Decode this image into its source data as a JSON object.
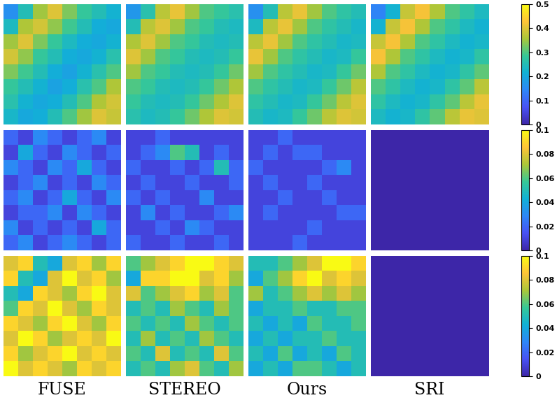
{
  "chart_data": [
    {
      "type": "heatmap",
      "tick_labels": false,
      "color_range": [
        0,
        0.5
      ],
      "cells": [
        [
          0.16,
          0.25,
          0.35,
          0.4,
          0.33,
          0.28,
          0.25,
          0.22
        ],
        [
          0.24,
          0.36,
          0.39,
          0.34,
          0.29,
          0.25,
          0.21,
          0.2
        ],
        [
          0.35,
          0.4,
          0.33,
          0.28,
          0.24,
          0.21,
          0.2,
          0.22
        ],
        [
          0.39,
          0.34,
          0.28,
          0.25,
          0.21,
          0.2,
          0.22,
          0.26
        ],
        [
          0.33,
          0.29,
          0.25,
          0.21,
          0.19,
          0.22,
          0.26,
          0.3
        ],
        [
          0.28,
          0.25,
          0.22,
          0.19,
          0.21,
          0.26,
          0.3,
          0.36
        ],
        [
          0.26,
          0.22,
          0.2,
          0.21,
          0.25,
          0.3,
          0.36,
          0.39
        ],
        [
          0.23,
          0.2,
          0.21,
          0.25,
          0.3,
          0.35,
          0.4,
          0.38
        ]
      ]
    },
    {
      "type": "heatmap",
      "tick_labels": false,
      "color_range": [
        0,
        0.5
      ],
      "cells": [
        [
          0.17,
          0.26,
          0.37,
          0.41,
          0.35,
          0.3,
          0.28,
          0.26
        ],
        [
          0.25,
          0.37,
          0.4,
          0.35,
          0.3,
          0.28,
          0.25,
          0.24
        ],
        [
          0.36,
          0.4,
          0.35,
          0.3,
          0.28,
          0.25,
          0.24,
          0.25
        ],
        [
          0.4,
          0.35,
          0.3,
          0.28,
          0.25,
          0.24,
          0.25,
          0.28
        ],
        [
          0.35,
          0.3,
          0.28,
          0.25,
          0.24,
          0.25,
          0.28,
          0.32
        ],
        [
          0.3,
          0.28,
          0.25,
          0.24,
          0.25,
          0.28,
          0.32,
          0.36
        ],
        [
          0.28,
          0.25,
          0.24,
          0.25,
          0.28,
          0.32,
          0.36,
          0.4
        ],
        [
          0.26,
          0.24,
          0.25,
          0.28,
          0.32,
          0.36,
          0.4,
          0.39
        ]
      ]
    },
    {
      "type": "heatmap",
      "tick_labels": false,
      "color_range": [
        0,
        0.5
      ],
      "cells": [
        [
          0.16,
          0.25,
          0.37,
          0.41,
          0.35,
          0.3,
          0.27,
          0.25
        ],
        [
          0.24,
          0.37,
          0.41,
          0.35,
          0.3,
          0.27,
          0.25,
          0.23
        ],
        [
          0.37,
          0.41,
          0.35,
          0.3,
          0.27,
          0.25,
          0.23,
          0.24
        ],
        [
          0.41,
          0.35,
          0.3,
          0.27,
          0.25,
          0.23,
          0.24,
          0.28
        ],
        [
          0.35,
          0.3,
          0.27,
          0.25,
          0.23,
          0.24,
          0.28,
          0.32
        ],
        [
          0.3,
          0.27,
          0.25,
          0.23,
          0.24,
          0.28,
          0.32,
          0.37
        ],
        [
          0.27,
          0.25,
          0.23,
          0.24,
          0.28,
          0.32,
          0.37,
          0.4
        ],
        [
          0.25,
          0.23,
          0.24,
          0.28,
          0.32,
          0.37,
          0.4,
          0.39
        ]
      ]
    },
    {
      "type": "heatmap",
      "tick_labels": false,
      "color_range": [
        0,
        0.5
      ],
      "colorbar": {
        "ticks": [
          0,
          0.1,
          0.2,
          0.3,
          0.4,
          0.5
        ]
      },
      "cells": [
        [
          0.14,
          0.22,
          0.38,
          0.42,
          0.36,
          0.3,
          0.27,
          0.24
        ],
        [
          0.22,
          0.38,
          0.42,
          0.36,
          0.3,
          0.27,
          0.24,
          0.22
        ],
        [
          0.38,
          0.42,
          0.36,
          0.3,
          0.27,
          0.24,
          0.22,
          0.23
        ],
        [
          0.42,
          0.36,
          0.3,
          0.27,
          0.24,
          0.22,
          0.23,
          0.27
        ],
        [
          0.36,
          0.3,
          0.27,
          0.24,
          0.22,
          0.23,
          0.27,
          0.31
        ],
        [
          0.3,
          0.27,
          0.24,
          0.22,
          0.23,
          0.27,
          0.31,
          0.37
        ],
        [
          0.27,
          0.24,
          0.22,
          0.23,
          0.27,
          0.31,
          0.37,
          0.41
        ],
        [
          0.24,
          0.22,
          0.23,
          0.27,
          0.31,
          0.37,
          0.41,
          0.4
        ]
      ]
    },
    {
      "type": "heatmap",
      "tick_labels": false,
      "color_range": [
        0,
        0.1
      ],
      "cells": [
        [
          0.02,
          0.01,
          0.03,
          0.02,
          0.01,
          0.02,
          0.03,
          0.01
        ],
        [
          0.01,
          0.04,
          0.02,
          0.01,
          0.03,
          0.02,
          0.01,
          0.02
        ],
        [
          0.03,
          0.02,
          0.01,
          0.03,
          0.02,
          0.04,
          0.02,
          0.01
        ],
        [
          0.01,
          0.02,
          0.03,
          0.01,
          0.02,
          0.01,
          0.03,
          0.02
        ],
        [
          0.02,
          0.03,
          0.01,
          0.02,
          0.04,
          0.02,
          0.01,
          0.03
        ],
        [
          0.01,
          0.02,
          0.02,
          0.03,
          0.01,
          0.03,
          0.02,
          0.01
        ],
        [
          0.03,
          0.01,
          0.02,
          0.01,
          0.02,
          0.01,
          0.04,
          0.02
        ],
        [
          0.02,
          0.03,
          0.01,
          0.02,
          0.03,
          0.02,
          0.01,
          0.02
        ]
      ]
    },
    {
      "type": "heatmap",
      "tick_labels": false,
      "color_range": [
        0,
        0.1
      ],
      "cells": [
        [
          0.01,
          0.01,
          0.02,
          0.01,
          0.01,
          0.01,
          0.01,
          0.01
        ],
        [
          0.01,
          0.02,
          0.03,
          0.06,
          0.05,
          0.01,
          0.02,
          0.01
        ],
        [
          0.02,
          0.01,
          0.01,
          0.02,
          0.01,
          0.02,
          0.05,
          0.02
        ],
        [
          0.01,
          0.02,
          0.01,
          0.01,
          0.02,
          0.01,
          0.01,
          0.02
        ],
        [
          0.02,
          0.01,
          0.02,
          0.01,
          0.01,
          0.03,
          0.01,
          0.01
        ],
        [
          0.01,
          0.03,
          0.01,
          0.02,
          0.01,
          0.01,
          0.02,
          0.03
        ],
        [
          0.01,
          0.01,
          0.02,
          0.01,
          0.03,
          0.02,
          0.01,
          0.01
        ],
        [
          0.02,
          0.01,
          0.01,
          0.02,
          0.01,
          0.01,
          0.02,
          0.01
        ]
      ]
    },
    {
      "type": "heatmap",
      "tick_labels": false,
      "color_range": [
        0,
        0.1
      ],
      "cells": [
        [
          0.01,
          0.01,
          0.02,
          0.01,
          0.01,
          0.01,
          0.01,
          0.01
        ],
        [
          0.01,
          0.02,
          0.01,
          0.02,
          0.02,
          0.01,
          0.01,
          0.01
        ],
        [
          0.02,
          0.01,
          0.01,
          0.01,
          0.01,
          0.02,
          0.03,
          0.01
        ],
        [
          0.01,
          0.02,
          0.01,
          0.01,
          0.02,
          0.01,
          0.01,
          0.01
        ],
        [
          0.01,
          0.01,
          0.02,
          0.01,
          0.01,
          0.02,
          0.01,
          0.01
        ],
        [
          0.01,
          0.02,
          0.01,
          0.01,
          0.01,
          0.01,
          0.02,
          0.02
        ],
        [
          0.01,
          0.01,
          0.01,
          0.01,
          0.02,
          0.01,
          0.01,
          0.01
        ],
        [
          0.01,
          0.01,
          0.01,
          0.02,
          0.01,
          0.01,
          0.01,
          0.01
        ]
      ]
    },
    {
      "type": "heatmap",
      "tick_labels": false,
      "color_range": [
        0,
        0.1
      ],
      "colorbar": {
        "ticks": [
          0,
          0.02,
          0.04,
          0.06,
          0.08,
          0.1
        ]
      },
      "cells": [
        [
          0,
          0,
          0,
          0,
          0,
          0,
          0,
          0
        ],
        [
          0,
          0,
          0,
          0,
          0,
          0,
          0,
          0
        ],
        [
          0,
          0,
          0,
          0,
          0,
          0,
          0,
          0
        ],
        [
          0,
          0,
          0,
          0,
          0,
          0,
          0,
          0
        ],
        [
          0,
          0,
          0,
          0,
          0,
          0,
          0,
          0
        ],
        [
          0,
          0,
          0,
          0,
          0,
          0,
          0,
          0
        ],
        [
          0,
          0,
          0,
          0,
          0,
          0,
          0,
          0
        ],
        [
          0,
          0,
          0,
          0,
          0,
          0,
          0,
          0
        ]
      ]
    },
    {
      "type": "heatmap",
      "tick_labels": false,
      "color_range": [
        0,
        0.1
      ],
      "xlabel": "FUSE",
      "cells": [
        [
          0.08,
          0.09,
          0.05,
          0.04,
          0.08,
          0.09,
          0.07,
          0.09
        ],
        [
          0.09,
          0.05,
          0.04,
          0.08,
          0.1,
          0.08,
          0.09,
          0.07
        ],
        [
          0.05,
          0.04,
          0.09,
          0.08,
          0.07,
          0.09,
          0.1,
          0.08
        ],
        [
          0.06,
          0.09,
          0.08,
          0.1,
          0.08,
          0.07,
          0.09,
          0.08
        ],
        [
          0.09,
          0.08,
          0.07,
          0.09,
          0.1,
          0.08,
          0.07,
          0.09
        ],
        [
          0.08,
          0.1,
          0.09,
          0.07,
          0.08,
          0.09,
          0.08,
          0.1
        ],
        [
          0.09,
          0.07,
          0.08,
          0.09,
          0.1,
          0.08,
          0.09,
          0.08
        ],
        [
          0.1,
          0.08,
          0.09,
          0.08,
          0.07,
          0.09,
          0.08,
          0.09
        ]
      ]
    },
    {
      "type": "heatmap",
      "tick_labels": false,
      "color_range": [
        0,
        0.1
      ],
      "xlabel": "STEREO",
      "cells": [
        [
          0.06,
          0.07,
          0.08,
          0.09,
          0.1,
          0.1,
          0.09,
          0.08
        ],
        [
          0.04,
          0.09,
          0.09,
          0.1,
          0.1,
          0.08,
          0.09,
          0.07
        ],
        [
          0.08,
          0.06,
          0.07,
          0.08,
          0.09,
          0.07,
          0.08,
          0.06
        ],
        [
          0.05,
          0.06,
          0.05,
          0.07,
          0.06,
          0.05,
          0.07,
          0.06
        ],
        [
          0.06,
          0.05,
          0.06,
          0.05,
          0.07,
          0.06,
          0.05,
          0.06
        ],
        [
          0.05,
          0.07,
          0.05,
          0.06,
          0.05,
          0.07,
          0.06,
          0.05
        ],
        [
          0.06,
          0.05,
          0.08,
          0.05,
          0.06,
          0.05,
          0.08,
          0.06
        ],
        [
          0.05,
          0.06,
          0.05,
          0.07,
          0.08,
          0.06,
          0.05,
          0.07
        ]
      ]
    },
    {
      "type": "heatmap",
      "tick_labels": false,
      "color_range": [
        0,
        0.1
      ],
      "xlabel": "Ours",
      "cells": [
        [
          0.05,
          0.05,
          0.06,
          0.07,
          0.08,
          0.1,
          0.1,
          0.09
        ],
        [
          0.04,
          0.06,
          0.07,
          0.09,
          0.1,
          0.08,
          0.09,
          0.08
        ],
        [
          0.07,
          0.05,
          0.06,
          0.07,
          0.08,
          0.07,
          0.08,
          0.07
        ],
        [
          0.04,
          0.05,
          0.05,
          0.06,
          0.05,
          0.05,
          0.06,
          0.06
        ],
        [
          0.05,
          0.04,
          0.05,
          0.04,
          0.06,
          0.05,
          0.05,
          0.06
        ],
        [
          0.04,
          0.05,
          0.04,
          0.05,
          0.05,
          0.06,
          0.05,
          0.05
        ],
        [
          0.05,
          0.04,
          0.06,
          0.04,
          0.05,
          0.04,
          0.06,
          0.05
        ],
        [
          0.04,
          0.05,
          0.04,
          0.06,
          0.06,
          0.05,
          0.04,
          0.05
        ]
      ]
    },
    {
      "type": "heatmap",
      "tick_labels": false,
      "color_range": [
        0,
        0.1
      ],
      "xlabel": "SRI",
      "colorbar": {
        "ticks": [
          0,
          0.02,
          0.04,
          0.06,
          0.08,
          0.1
        ]
      },
      "cells": [
        [
          0,
          0,
          0,
          0,
          0,
          0,
          0,
          0
        ],
        [
          0,
          0,
          0,
          0,
          0,
          0,
          0,
          0
        ],
        [
          0,
          0,
          0,
          0,
          0,
          0,
          0,
          0
        ],
        [
          0,
          0,
          0,
          0,
          0,
          0,
          0,
          0
        ],
        [
          0,
          0,
          0,
          0,
          0,
          0,
          0,
          0
        ],
        [
          0,
          0,
          0,
          0,
          0,
          0,
          0,
          0
        ],
        [
          0,
          0,
          0,
          0,
          0,
          0,
          0,
          0
        ],
        [
          0,
          0,
          0,
          0,
          0,
          0,
          0,
          0
        ]
      ]
    }
  ]
}
